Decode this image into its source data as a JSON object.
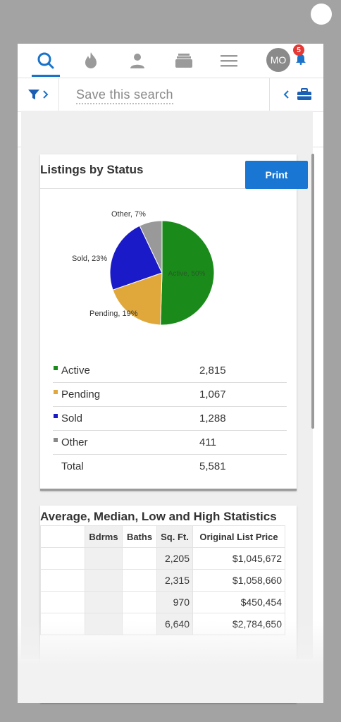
{
  "nav": {
    "avatar_initials": "MO",
    "badge_count": "5",
    "accent": "#1a73c8"
  },
  "search": {
    "placeholder": "Save this search"
  },
  "listings": {
    "title": "Listings by Status",
    "print_label": "Print",
    "slices": [
      {
        "label": "Active",
        "percent": 50,
        "slice_label": "Active, 50%",
        "color": "#1a8a1a",
        "count": "2,815"
      },
      {
        "label": "Pending",
        "percent": 19,
        "slice_label": "Pending, 19%",
        "color": "#e0a83a",
        "count": "1,067"
      },
      {
        "label": "Sold",
        "percent": 23,
        "slice_label": "Sold, 23%",
        "color": "#1a1ac8",
        "count": "1,288"
      },
      {
        "label": "Other",
        "percent": 7,
        "slice_label": "Other, 7%",
        "color": "#999999",
        "count": "411"
      }
    ],
    "total_label": "Total",
    "total_value": "5,581"
  },
  "stats": {
    "title": "Average, Median, Low and High Statistics",
    "columns": [
      "",
      "Bdrms",
      "Baths",
      "Sq. Ft.",
      "Original List Price"
    ],
    "rows": [
      [
        "",
        "",
        "",
        "2,205",
        "$1,045,672"
      ],
      [
        "",
        "",
        "",
        "2,315",
        "$1,058,660"
      ],
      [
        "",
        "",
        "",
        "970",
        "$450,454"
      ],
      [
        "",
        "",
        "",
        "6,640",
        "$2,784,650"
      ]
    ]
  },
  "chart_data": {
    "type": "pie",
    "categories": [
      "Active",
      "Pending",
      "Sold",
      "Other"
    ],
    "values": [
      50,
      19,
      23,
      7
    ],
    "counts": [
      2815,
      1067,
      1288,
      411
    ],
    "title": "Listings by Status"
  }
}
